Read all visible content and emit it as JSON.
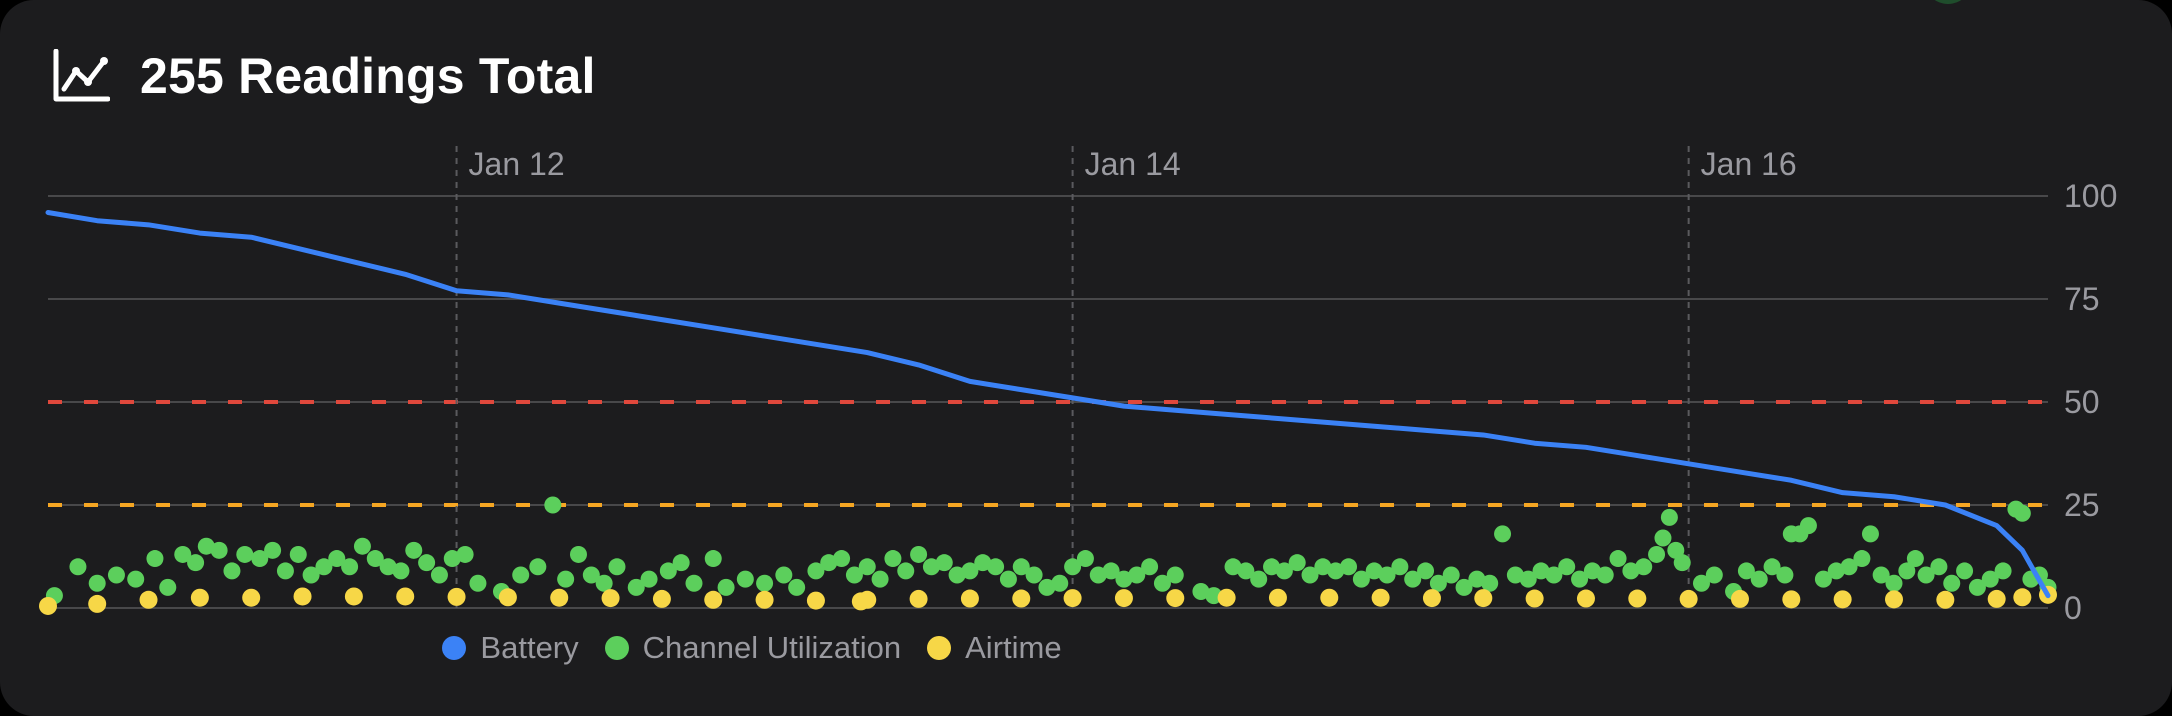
{
  "header": {
    "icon": "line-chart-icon",
    "title": "255 Readings Total"
  },
  "colors": {
    "battery": "#3b82f6",
    "channel_utilization": "#5ccf5c",
    "airtime": "#f7d747",
    "threshold_red": "#e0483c",
    "threshold_orange": "#f5a623",
    "grid": "#48484a",
    "axis_text": "#9a9aa0"
  },
  "chart_data": {
    "type": "line",
    "x_type": "date",
    "x_ticks": [
      "Jan 12",
      "Jan 14",
      "Jan 16"
    ],
    "x_range": [
      "Jan 10 16:10",
      "Jan 17 04:00"
    ],
    "y_ticks": [
      0,
      25,
      50,
      75,
      100
    ],
    "ylim": [
      0,
      100
    ],
    "grid": true,
    "thresholds": [
      {
        "value": 50,
        "color": "red",
        "style": "dashed"
      },
      {
        "value": 25,
        "color": "orange",
        "style": "dashed"
      }
    ],
    "legend_position": "bottom-center",
    "series": [
      {
        "name": "Battery",
        "type": "line",
        "color": "blue",
        "points": [
          [
            "Jan 10 16:10",
            96
          ],
          [
            "Jan 10 20:00",
            94
          ],
          [
            "Jan 11 00:00",
            93
          ],
          [
            "Jan 11 04:00",
            91
          ],
          [
            "Jan 11 08:00",
            90
          ],
          [
            "Jan 11 12:00",
            87
          ],
          [
            "Jan 11 16:00",
            84
          ],
          [
            "Jan 11 20:00",
            81
          ],
          [
            "Jan 12 00:00",
            77
          ],
          [
            "Jan 12 04:00",
            76
          ],
          [
            "Jan 12 08:00",
            74
          ],
          [
            "Jan 12 12:00",
            72
          ],
          [
            "Jan 12 16:00",
            70
          ],
          [
            "Jan 12 20:00",
            68
          ],
          [
            "Jan 13 00:00",
            66
          ],
          [
            "Jan 13 04:00",
            64
          ],
          [
            "Jan 13 08:00",
            62
          ],
          [
            "Jan 13 12:00",
            59
          ],
          [
            "Jan 13 16:00",
            55
          ],
          [
            "Jan 13 20:00",
            53
          ],
          [
            "Jan 14 00:00",
            51
          ],
          [
            "Jan 14 04:00",
            49
          ],
          [
            "Jan 14 08:00",
            48
          ],
          [
            "Jan 14 12:00",
            47
          ],
          [
            "Jan 14 16:00",
            46
          ],
          [
            "Jan 14 20:00",
            45
          ],
          [
            "Jan 15 00:00",
            44
          ],
          [
            "Jan 15 04:00",
            43
          ],
          [
            "Jan 15 08:00",
            42
          ],
          [
            "Jan 15 12:00",
            40
          ],
          [
            "Jan 15 16:00",
            39
          ],
          [
            "Jan 15 20:00",
            37
          ],
          [
            "Jan 16 00:00",
            35
          ],
          [
            "Jan 16 04:00",
            33
          ],
          [
            "Jan 16 08:00",
            31
          ],
          [
            "Jan 16 12:00",
            28
          ],
          [
            "Jan 16 16:00",
            27
          ],
          [
            "Jan 16 20:00",
            25
          ],
          [
            "Jan 17 00:00",
            20
          ],
          [
            "Jan 17 02:00",
            14
          ],
          [
            "Jan 17 04:00",
            3
          ]
        ]
      },
      {
        "name": "Channel Utilization",
        "type": "scatter",
        "color": "green",
        "points": [
          [
            "Jan 10 16:40",
            3
          ],
          [
            "Jan 10 18:30",
            10
          ],
          [
            "Jan 10 20:00",
            6
          ],
          [
            "Jan 10 21:30",
            8
          ],
          [
            "Jan 10 23:00",
            7
          ],
          [
            "Jan 11 00:30",
            12
          ],
          [
            "Jan 11 01:30",
            5
          ],
          [
            "Jan 11 02:40",
            13
          ],
          [
            "Jan 11 03:40",
            11
          ],
          [
            "Jan 11 04:30",
            15
          ],
          [
            "Jan 11 05:30",
            14
          ],
          [
            "Jan 11 06:30",
            9
          ],
          [
            "Jan 11 07:30",
            13
          ],
          [
            "Jan 11 08:40",
            12
          ],
          [
            "Jan 11 09:40",
            14
          ],
          [
            "Jan 11 10:40",
            9
          ],
          [
            "Jan 11 11:40",
            13
          ],
          [
            "Jan 11 12:40",
            8
          ],
          [
            "Jan 11 13:40",
            10
          ],
          [
            "Jan 11 14:40",
            12
          ],
          [
            "Jan 11 15:40",
            10
          ],
          [
            "Jan 11 16:40",
            15
          ],
          [
            "Jan 11 17:40",
            12
          ],
          [
            "Jan 11 18:40",
            10
          ],
          [
            "Jan 11 19:40",
            9
          ],
          [
            "Jan 11 20:40",
            14
          ],
          [
            "Jan 11 21:40",
            11
          ],
          [
            "Jan 11 22:40",
            8
          ],
          [
            "Jan 11 23:40",
            12
          ],
          [
            "Jan 12 00:40",
            13
          ],
          [
            "Jan 12 01:40",
            6
          ],
          [
            "Jan 12 03:30",
            4
          ],
          [
            "Jan 12 05:00",
            8
          ],
          [
            "Jan 12 06:20",
            10
          ],
          [
            "Jan 12 07:30",
            25
          ],
          [
            "Jan 12 08:30",
            7
          ],
          [
            "Jan 12 09:30",
            13
          ],
          [
            "Jan 12 10:30",
            8
          ],
          [
            "Jan 12 11:30",
            6
          ],
          [
            "Jan 12 12:30",
            10
          ],
          [
            "Jan 12 14:00",
            5
          ],
          [
            "Jan 12 15:00",
            7
          ],
          [
            "Jan 12 16:30",
            9
          ],
          [
            "Jan 12 17:30",
            11
          ],
          [
            "Jan 12 18:30",
            6
          ],
          [
            "Jan 12 20:00",
            12
          ],
          [
            "Jan 12 21:00",
            5
          ],
          [
            "Jan 12 22:30",
            7
          ],
          [
            "Jan 13 00:00",
            6
          ],
          [
            "Jan 13 01:30",
            8
          ],
          [
            "Jan 13 02:30",
            5
          ],
          [
            "Jan 13 04:00",
            9
          ],
          [
            "Jan 13 05:00",
            11
          ],
          [
            "Jan 13 06:00",
            12
          ],
          [
            "Jan 13 07:00",
            8
          ],
          [
            "Jan 13 08:00",
            10
          ],
          [
            "Jan 13 09:00",
            7
          ],
          [
            "Jan 13 10:00",
            12
          ],
          [
            "Jan 13 11:00",
            9
          ],
          [
            "Jan 13 12:00",
            13
          ],
          [
            "Jan 13 13:00",
            10
          ],
          [
            "Jan 13 14:00",
            11
          ],
          [
            "Jan 13 15:00",
            8
          ],
          [
            "Jan 13 16:00",
            9
          ],
          [
            "Jan 13 17:00",
            11
          ],
          [
            "Jan 13 18:00",
            10
          ],
          [
            "Jan 13 19:00",
            7
          ],
          [
            "Jan 13 20:00",
            10
          ],
          [
            "Jan 13 21:00",
            8
          ],
          [
            "Jan 13 22:00",
            5
          ],
          [
            "Jan 13 23:00",
            6
          ],
          [
            "Jan 14 00:00",
            10
          ],
          [
            "Jan 14 01:00",
            12
          ],
          [
            "Jan 14 02:00",
            8
          ],
          [
            "Jan 14 03:00",
            9
          ],
          [
            "Jan 14 04:00",
            7
          ],
          [
            "Jan 14 05:00",
            8
          ],
          [
            "Jan 14 06:00",
            10
          ],
          [
            "Jan 14 07:00",
            6
          ],
          [
            "Jan 14 08:00",
            8
          ],
          [
            "Jan 14 10:00",
            4
          ],
          [
            "Jan 14 11:00",
            3
          ],
          [
            "Jan 14 12:30",
            10
          ],
          [
            "Jan 14 13:30",
            9
          ],
          [
            "Jan 14 14:30",
            7
          ],
          [
            "Jan 14 15:30",
            10
          ],
          [
            "Jan 14 16:30",
            9
          ],
          [
            "Jan 14 17:30",
            11
          ],
          [
            "Jan 14 18:30",
            8
          ],
          [
            "Jan 14 19:30",
            10
          ],
          [
            "Jan 14 20:30",
            9
          ],
          [
            "Jan 14 21:30",
            10
          ],
          [
            "Jan 14 22:30",
            7
          ],
          [
            "Jan 14 23:30",
            9
          ],
          [
            "Jan 15 00:30",
            8
          ],
          [
            "Jan 15 01:30",
            10
          ],
          [
            "Jan 15 02:30",
            7
          ],
          [
            "Jan 15 03:30",
            9
          ],
          [
            "Jan 15 04:30",
            6
          ],
          [
            "Jan 15 05:30",
            8
          ],
          [
            "Jan 15 06:30",
            5
          ],
          [
            "Jan 15 07:30",
            7
          ],
          [
            "Jan 15 08:30",
            6
          ],
          [
            "Jan 15 09:30",
            18
          ],
          [
            "Jan 15 10:30",
            8
          ],
          [
            "Jan 15 11:30",
            7
          ],
          [
            "Jan 15 12:30",
            9
          ],
          [
            "Jan 15 13:30",
            8
          ],
          [
            "Jan 15 14:30",
            10
          ],
          [
            "Jan 15 15:30",
            7
          ],
          [
            "Jan 15 16:30",
            9
          ],
          [
            "Jan 15 17:30",
            8
          ],
          [
            "Jan 15 18:30",
            12
          ],
          [
            "Jan 15 19:30",
            9
          ],
          [
            "Jan 15 20:30",
            10
          ],
          [
            "Jan 15 21:30",
            13
          ],
          [
            "Jan 15 22:00",
            17
          ],
          [
            "Jan 15 22:30",
            22
          ],
          [
            "Jan 15 23:00",
            14
          ],
          [
            "Jan 15 23:30",
            11
          ],
          [
            "Jan 16 01:00",
            6
          ],
          [
            "Jan 16 02:00",
            8
          ],
          [
            "Jan 16 03:30",
            4
          ],
          [
            "Jan 16 04:30",
            9
          ],
          [
            "Jan 16 05:30",
            7
          ],
          [
            "Jan 16 06:30",
            10
          ],
          [
            "Jan 16 07:30",
            8
          ],
          [
            "Jan 16 08:00",
            18
          ],
          [
            "Jan 16 08:40",
            18
          ],
          [
            "Jan 16 09:20",
            20
          ],
          [
            "Jan 16 10:30",
            7
          ],
          [
            "Jan 16 11:30",
            9
          ],
          [
            "Jan 16 12:30",
            10
          ],
          [
            "Jan 16 13:30",
            12
          ],
          [
            "Jan 16 14:10",
            18
          ],
          [
            "Jan 16 15:00",
            8
          ],
          [
            "Jan 16 16:00",
            6
          ],
          [
            "Jan 16 17:00",
            9
          ],
          [
            "Jan 16 17:40",
            12
          ],
          [
            "Jan 16 18:30",
            8
          ],
          [
            "Jan 16 19:30",
            10
          ],
          [
            "Jan 16 20:30",
            6
          ],
          [
            "Jan 16 21:30",
            9
          ],
          [
            "Jan 16 22:30",
            5
          ],
          [
            "Jan 16 23:30",
            7
          ],
          [
            "Jan 17 00:30",
            9
          ],
          [
            "Jan 17 01:30",
            24
          ],
          [
            "Jan 17 02:00",
            23
          ],
          [
            "Jan 17 02:40",
            7
          ],
          [
            "Jan 17 03:20",
            8
          ],
          [
            "Jan 17 04:00",
            5
          ]
        ]
      },
      {
        "name": "Airtime",
        "type": "scatter",
        "color": "yellow",
        "points": [
          [
            "Jan 10 16:10",
            0.5
          ],
          [
            "Jan 10 20:00",
            1
          ],
          [
            "Jan 11 00:00",
            2
          ],
          [
            "Jan 11 04:00",
            2.5
          ],
          [
            "Jan 11 08:00",
            2.5
          ],
          [
            "Jan 11 12:00",
            2.8
          ],
          [
            "Jan 11 16:00",
            2.8
          ],
          [
            "Jan 11 20:00",
            2.8
          ],
          [
            "Jan 12 00:00",
            2.7
          ],
          [
            "Jan 12 04:00",
            2.6
          ],
          [
            "Jan 12 08:00",
            2.5
          ],
          [
            "Jan 12 12:00",
            2.4
          ],
          [
            "Jan 12 16:00",
            2.2
          ],
          [
            "Jan 12 20:00",
            2
          ],
          [
            "Jan 13 00:00",
            2
          ],
          [
            "Jan 13 04:00",
            1.8
          ],
          [
            "Jan 13 07:30",
            1.6
          ],
          [
            "Jan 13 08:00",
            2
          ],
          [
            "Jan 13 12:00",
            2.2
          ],
          [
            "Jan 13 16:00",
            2.3
          ],
          [
            "Jan 13 20:00",
            2.3
          ],
          [
            "Jan 14 00:00",
            2.4
          ],
          [
            "Jan 14 04:00",
            2.4
          ],
          [
            "Jan 14 08:00",
            2.4
          ],
          [
            "Jan 14 12:00",
            2.5
          ],
          [
            "Jan 14 16:00",
            2.5
          ],
          [
            "Jan 14 20:00",
            2.5
          ],
          [
            "Jan 15 00:00",
            2.5
          ],
          [
            "Jan 15 04:00",
            2.4
          ],
          [
            "Jan 15 08:00",
            2.4
          ],
          [
            "Jan 15 12:00",
            2.3
          ],
          [
            "Jan 15 16:00",
            2.3
          ],
          [
            "Jan 15 20:00",
            2.3
          ],
          [
            "Jan 16 00:00",
            2.2
          ],
          [
            "Jan 16 04:00",
            2.2
          ],
          [
            "Jan 16 08:00",
            2.1
          ],
          [
            "Jan 16 12:00",
            2.1
          ],
          [
            "Jan 16 16:00",
            2.1
          ],
          [
            "Jan 16 20:00",
            2
          ],
          [
            "Jan 17 00:00",
            2.2
          ],
          [
            "Jan 17 02:00",
            2.6
          ],
          [
            "Jan 17 04:00",
            3.2
          ]
        ]
      }
    ]
  },
  "legend": {
    "items": [
      {
        "label": "Battery",
        "color": "#3b82f6"
      },
      {
        "label": "Channel Utilization",
        "color": "#5ccf5c"
      },
      {
        "label": "Airtime",
        "color": "#f7d747"
      }
    ]
  }
}
